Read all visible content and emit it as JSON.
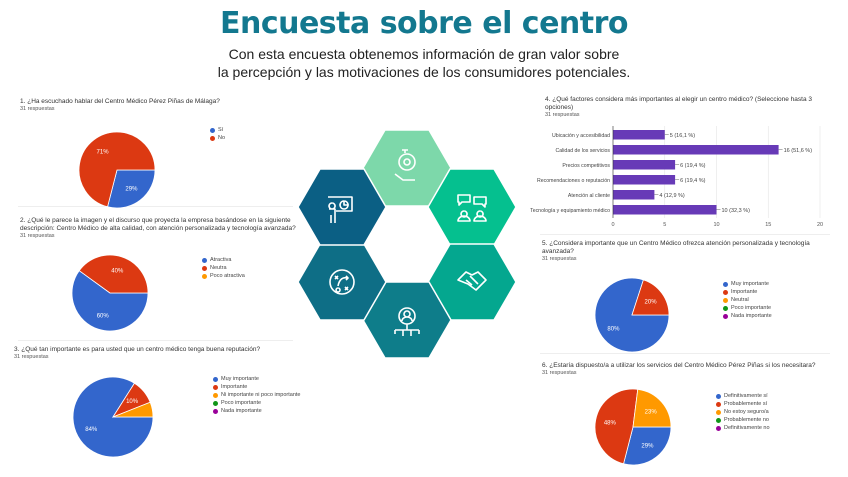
{
  "header": {
    "title": "Encuesta sobre el centro",
    "subtitle_line1": "Con esta encuesta obtenemos información de gran valor sobre",
    "subtitle_line2": "la percepción y las motivaciones de los consumidores potenciales."
  },
  "colors": {
    "blue": "#3366cc",
    "red": "#dc3912",
    "orange": "#ff9900",
    "green": "#109618",
    "purple": "#990099",
    "bar": "#673ab7",
    "title": "#13788f"
  },
  "hexagons": [
    {
      "icon": "target-hand-icon",
      "color": "#7dd8aa"
    },
    {
      "icon": "conversation-icon",
      "color": "#05c08f"
    },
    {
      "icon": "handshake-icon",
      "color": "#04a78f"
    },
    {
      "icon": "network-user-icon",
      "color": "#0e7d8a"
    },
    {
      "icon": "strategy-icon",
      "color": "#0e6e86"
    },
    {
      "icon": "presentation-icon",
      "color": "#0b5f84"
    }
  ],
  "chart_data": [
    {
      "type": "pie",
      "id": "q1",
      "title": "1. ¿Ha escuchado hablar del Centro Médico Pérez Piñas de Málaga?",
      "responses": "31 respuestas",
      "categories": [
        "Sí",
        "No"
      ],
      "values": [
        29,
        71
      ],
      "labels": [
        "29%",
        "71%"
      ]
    },
    {
      "type": "pie",
      "id": "q2",
      "title": "2. ¿Qué le parece la imagen y el discurso que proyecta la empresa basándose en la siguiente descripción: Centro Médico de alta calidad, con atención personalizada y tecnología avanzada?",
      "responses": "31 respuestas",
      "categories": [
        "Atractiva",
        "Neutra",
        "Poco atractiva"
      ],
      "values": [
        60,
        40,
        0
      ],
      "labels": [
        "60%",
        "40%",
        ""
      ]
    },
    {
      "type": "pie",
      "id": "q3",
      "title": "3. ¿Qué tan importante es para usted que un centro médico tenga buena reputación?",
      "responses": "31 respuestas",
      "categories": [
        "Muy importante",
        "Importante",
        "Ni importante ni poco importante",
        "Poco importante",
        "Nada importante"
      ],
      "values": [
        84,
        10,
        6,
        0,
        0
      ],
      "labels": [
        "84%",
        "10%",
        "",
        "",
        ""
      ]
    },
    {
      "type": "bar",
      "id": "q4",
      "orientation": "horizontal",
      "title": "4. ¿Qué factores considera más importantes al elegir un centro médico? (Seleccione hasta 3 opciones)",
      "responses": "31 respuestas",
      "categories": [
        "Ubicación y accesibilidad",
        "Calidad de los servicios",
        "Precios competitivos",
        "Recomendaciones o reputación",
        "Atención al cliente",
        "Tecnología y equipamiento médico"
      ],
      "values": [
        5,
        16,
        6,
        6,
        4,
        10
      ],
      "labels": [
        "5 (16,1 %)",
        "16 (51,6 %)",
        "6 (19,4 %)",
        "6 (19,4 %)",
        "4 (12,9 %)",
        "10 (32,3 %)"
      ],
      "xticks": [
        0,
        5,
        10,
        15,
        20
      ],
      "xlim": [
        0,
        20
      ]
    },
    {
      "type": "pie",
      "id": "q5",
      "title": "5. ¿Considera importante que un Centro Médico ofrezca atención personalizada y tecnología avanzada?",
      "responses": "31 respuestas",
      "categories": [
        "Muy importante",
        "Importante",
        "Neutral",
        "Poco importante",
        "Nada importante"
      ],
      "values": [
        80,
        20,
        0,
        0,
        0
      ],
      "labels": [
        "80%",
        "20%",
        "",
        "",
        ""
      ]
    },
    {
      "type": "pie",
      "id": "q6",
      "title": "6. ¿Estaría dispuesto/a a utilizar los servicios del Centro Médico Pérez Piñas si los necesitara?",
      "responses": "31 respuestas",
      "categories": [
        "Definitivamente sí",
        "Probablemente sí",
        "No estoy seguro/a",
        "Probablemente no",
        "Definitivamente no"
      ],
      "values": [
        29,
        48,
        23,
        0,
        0
      ],
      "labels": [
        "29%",
        "48%",
        "23%",
        "",
        ""
      ]
    }
  ]
}
